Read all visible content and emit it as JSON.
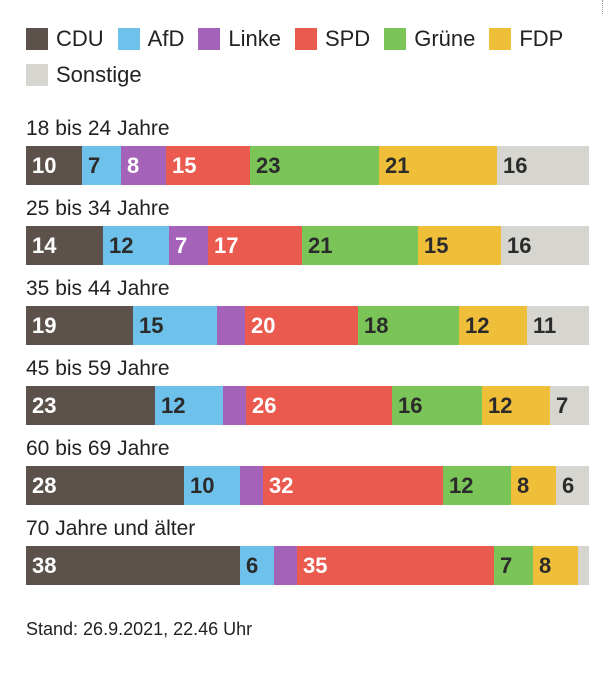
{
  "chart_data": {
    "type": "bar",
    "orientation": "horizontal",
    "stacked": true,
    "categories": [
      "18 bis 24 Jahre",
      "25 bis 34 Jahre",
      "35 bis 44 Jahre",
      "45 bis 59 Jahre",
      "60 bis 69 Jahre",
      "70 Jahre und älter"
    ],
    "series": [
      {
        "name": "CDU",
        "color": "#5c524b",
        "text_color": "#ffffff",
        "values": [
          10,
          14,
          19,
          23,
          28,
          38
        ],
        "labels": [
          "10",
          "14",
          "19",
          "23",
          "28",
          "38"
        ]
      },
      {
        "name": "AfD",
        "color": "#6ec1ea",
        "text_color": "#2b2b2b",
        "values": [
          7,
          12,
          15,
          12,
          10,
          6
        ],
        "labels": [
          "7",
          "12",
          "15",
          "12",
          "10",
          "6"
        ]
      },
      {
        "name": "Linke",
        "color": "#a463b8",
        "text_color": "#ffffff",
        "values": [
          8,
          7,
          5,
          4,
          4,
          4
        ],
        "labels": [
          "8",
          "7",
          "",
          "",
          "",
          ""
        ]
      },
      {
        "name": "SPD",
        "color": "#ea5a4f",
        "text_color": "#ffffff",
        "values": [
          15,
          17,
          20,
          26,
          32,
          35
        ],
        "labels": [
          "15",
          "17",
          "20",
          "26",
          "32",
          "35"
        ]
      },
      {
        "name": "Grüne",
        "color": "#7ac458",
        "text_color": "#2b2b2b",
        "values": [
          23,
          21,
          18,
          16,
          12,
          7
        ],
        "labels": [
          "23",
          "21",
          "18",
          "16",
          "12",
          "7"
        ]
      },
      {
        "name": "FDP",
        "color": "#f0bf3a",
        "text_color": "#2b2b2b",
        "values": [
          21,
          15,
          12,
          12,
          8,
          8
        ],
        "labels": [
          "21",
          "15",
          "12",
          "12",
          "8",
          "8"
        ]
      },
      {
        "name": "Sonstige",
        "color": "#d6d5d0",
        "text_color": "#2b2b2b",
        "values": [
          16,
          16,
          11,
          7,
          6,
          2
        ],
        "labels": [
          "16",
          "16",
          "11",
          "7",
          "6",
          ""
        ]
      }
    ],
    "title": "",
    "xlabel": "",
    "ylabel": ""
  },
  "footer": {
    "stand": "Stand: 26.9.2021, 22.46 Uhr"
  }
}
